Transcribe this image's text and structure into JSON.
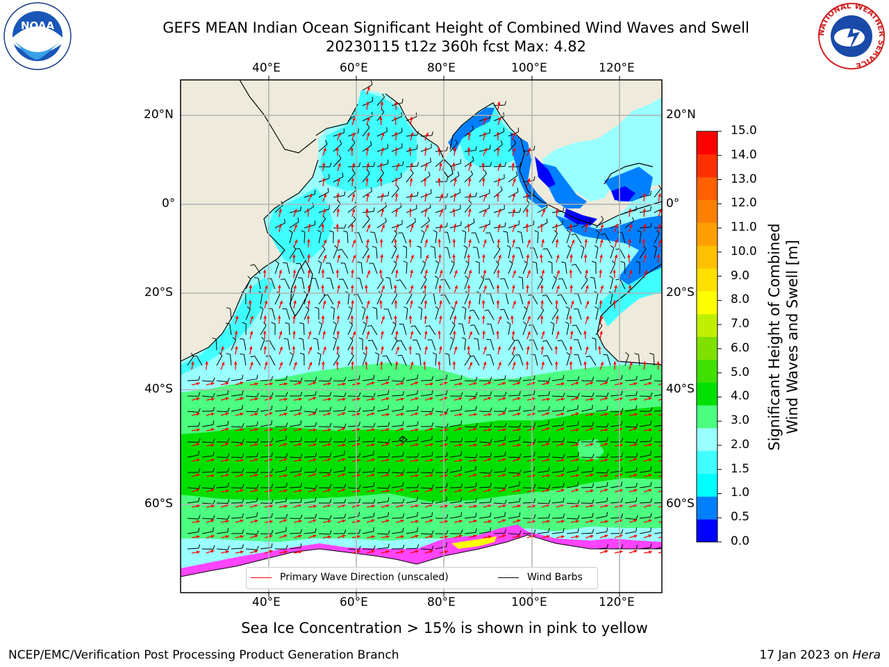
{
  "title": {
    "line1": "GEFS MEAN Indian Ocean Significant Height of Combined Wind Waves and Swell",
    "line2": "20230115 t12z 360h fcst   Max: 4.82"
  },
  "logos": {
    "noaa": {
      "text": "NOAA",
      "ring_text": "NATIONAL OCEANIC AND ATMOSPHERIC ADMINISTRATION · U.S. DEPARTMENT OF COMMERCE",
      "icon": "noaa-logo"
    },
    "nws": {
      "ring_text": "NATIONAL WEATHER SERVICE",
      "icon": "nws-logo"
    }
  },
  "map": {
    "lon_top": [
      "40°E",
      "60°E",
      "80°E",
      "100°E",
      "120°E"
    ],
    "lon_bottom": [
      "40°E",
      "60°E",
      "80°E",
      "100°E",
      "120°E"
    ],
    "lat_left": [
      "20°N",
      "0°",
      "20°S",
      "40°S",
      "60°S"
    ],
    "lat_right": [
      "20°N",
      "0°",
      "20°S",
      "40°S",
      "60°S"
    ],
    "extent": {
      "lon_min": 20,
      "lon_max": 130,
      "lat_min": -70,
      "lat_max": 28
    },
    "colors": {
      "land": "#efebdc",
      "grid": "#b0b0b0",
      "wind_barb": "#000000",
      "wave_arrow": "#ff0000",
      "sea_ice": "#ff44ff"
    },
    "legend": {
      "primary_wave": "Primary Wave Direction (unscaled)",
      "wind_barbs": "Wind Barbs"
    }
  },
  "colorbar": {
    "label_line1": "Significant Height of Combined",
    "label_line2": "Wind Waves and Swell [m]",
    "ticks": [
      "15.0",
      "14.0",
      "13.0",
      "12.0",
      "11.0",
      "10.0",
      "9.0",
      "8.0",
      "7.0",
      "6.0",
      "5.0",
      "4.0",
      "3.0",
      "2.0",
      "1.5",
      "1.0",
      "0.5",
      "0.0"
    ],
    "colors": [
      "#0000ff",
      "#0080ff",
      "#00ffff",
      "#40ffff",
      "#99ffff",
      "#4cff80",
      "#00e000",
      "#40e000",
      "#80e000",
      "#c0f000",
      "#ffff00",
      "#ffe000",
      "#ffc000",
      "#ffa000",
      "#ff8000",
      "#ff6000",
      "#ff3000",
      "#ff0000"
    ]
  },
  "note": "Sea Ice Concentration > 15% is shown in pink to yellow",
  "footer": {
    "left": "NCEP/EMC/Verification Post Processing Product Generation Branch",
    "right_prefix": "17 Jan 2023 on ",
    "right_host": "Hera"
  }
}
